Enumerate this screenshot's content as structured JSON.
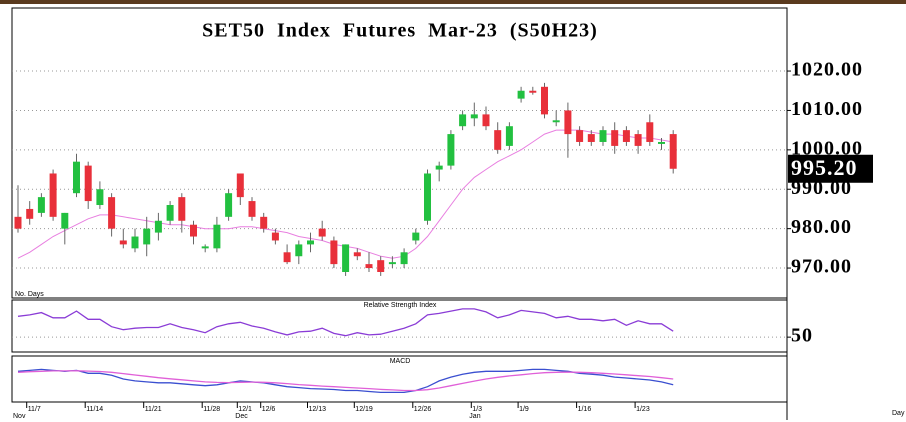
{
  "chart_data": [
    {
      "type": "candlestick",
      "title": "SET50 Index Futures Mar-23 (S50H23)",
      "categories": [
        null,
        "11/7",
        null,
        null,
        null,
        null,
        "11/14",
        null,
        null,
        null,
        null,
        "11/21",
        null,
        null,
        null,
        null,
        "11/28",
        null,
        null,
        "12/1",
        null,
        "12/6",
        null,
        null,
        null,
        "12/13",
        null,
        null,
        null,
        "12/19",
        null,
        null,
        null,
        null,
        "12/26",
        null,
        null,
        null,
        null,
        "1/3",
        null,
        null,
        null,
        "1/9",
        null,
        null,
        null,
        null,
        "1/16",
        null,
        null,
        null,
        null,
        "1/23",
        null,
        null,
        null
      ],
      "month_labels": [
        {
          "value": 0,
          "label": "Nov"
        },
        {
          "value": 19,
          "label": "Dec"
        },
        {
          "value": 39,
          "label": "Jan"
        }
      ],
      "x_unit_label": "Day",
      "corner_label": "No. Days",
      "open": [
        983,
        985,
        984,
        994,
        980,
        989,
        996,
        986,
        988,
        977,
        975,
        976,
        979,
        982,
        988,
        981,
        975,
        975,
        983,
        994,
        987,
        983,
        979,
        974,
        973,
        976,
        980,
        977,
        969,
        974,
        971,
        972,
        971,
        971,
        977,
        982,
        995,
        996,
        1006,
        1008,
        1009,
        1005,
        1001,
        1013,
        1015,
        1016,
        1007,
        1010,
        1005,
        1004,
        1002,
        1005,
        1005,
        1004,
        1007,
        1001.5,
        1004
      ],
      "high": [
        991,
        987,
        989,
        995,
        984,
        999,
        997,
        992,
        989,
        980,
        980,
        983,
        984,
        987,
        989,
        982,
        976,
        983,
        990,
        994,
        988,
        984,
        980,
        976,
        977,
        979,
        982,
        978,
        976,
        975,
        974,
        973,
        973,
        975,
        980,
        995,
        997,
        1005,
        1010,
        1012,
        1011,
        1007,
        1007,
        1016,
        1016,
        1017,
        1010,
        1012,
        1006,
        1005,
        1006,
        1007,
        1006,
        1005,
        1009,
        1003,
        1005
      ],
      "low": [
        979,
        981,
        983,
        982,
        976,
        988,
        985,
        985,
        978,
        975,
        974,
        973,
        977,
        981,
        979,
        976,
        974,
        974,
        982,
        986,
        982,
        979,
        976,
        971,
        971,
        974,
        977,
        970,
        968,
        972,
        969,
        968,
        970,
        970,
        976,
        981,
        992,
        995,
        1005,
        1006,
        1005,
        999,
        1000,
        1012,
        1014,
        1008,
        1006,
        998,
        1001,
        1001,
        1001,
        999,
        1001,
        999,
        1001,
        1000,
        994
      ],
      "close": [
        980,
        982.5,
        988,
        983,
        984,
        997,
        987,
        990,
        980,
        976,
        978,
        980,
        982,
        986,
        982,
        978,
        975.5,
        981,
        989,
        988,
        983,
        980,
        977,
        971.5,
        976,
        977,
        978,
        971,
        976,
        973,
        970,
        969,
        971.5,
        974,
        979,
        994,
        996,
        1004,
        1009,
        1009,
        1006,
        1000,
        1006,
        1015,
        1014.5,
        1009,
        1007.5,
        1004,
        1002,
        1002,
        1005,
        1001,
        1002,
        1001,
        1002,
        1002,
        995.2
      ],
      "up_color": "#22c040",
      "down_color": "#e8303a",
      "moving_average": {
        "color": "#e87fe0",
        "values": [
          972.5,
          974,
          976,
          978,
          979.5,
          981,
          982.5,
          983.5,
          983.5,
          983,
          982.5,
          982,
          981.5,
          981,
          981,
          980.5,
          980,
          980,
          980,
          980.5,
          980.5,
          980,
          979.5,
          979,
          978,
          977.5,
          977,
          976,
          975.5,
          975,
          974,
          973,
          972.5,
          973,
          975,
          978,
          982,
          986,
          990,
          993,
          995,
          997,
          998.5,
          1000,
          1002,
          1004,
          1005,
          1005,
          1005,
          1004.5,
          1004,
          1004,
          1003.5,
          1003,
          1003,
          1002.5,
          1002
        ]
      },
      "ylim": [
        962.4,
        1036
      ],
      "yticks": [
        {
          "value": 970,
          "label": "970.00"
        },
        {
          "value": 980,
          "label": "980.00"
        },
        {
          "value": 990,
          "label": "990.00"
        },
        {
          "value": 1000,
          "label": "1000.00"
        },
        {
          "value": 1010,
          "label": "1010.00"
        },
        {
          "value": 1020,
          "label": "1020.00"
        }
      ],
      "grid": true,
      "last_price": 995.2,
      "last_price_label": "995.20"
    },
    {
      "type": "line",
      "title": "Relative Strength Index",
      "series": [
        {
          "color": "#8a3cd6",
          "values": [
            78,
            80,
            83,
            76,
            76,
            85,
            74,
            74,
            64,
            60,
            62,
            63,
            63,
            68,
            63,
            60,
            56,
            64,
            68,
            70,
            65,
            62,
            57,
            53,
            57,
            58,
            62,
            55,
            52,
            56,
            53,
            54,
            58,
            62,
            68,
            80,
            82,
            85,
            88,
            88,
            84,
            76,
            80,
            86,
            84,
            82,
            76,
            78,
            74,
            74,
            72,
            74,
            66,
            72,
            68,
            68,
            58
          ]
        }
      ],
      "ylim": [
        30,
        100
      ],
      "yticks": [
        50
      ],
      "grid": true
    },
    {
      "type": "line",
      "title": "MACD",
      "series": [
        {
          "color": "#3a4fd0",
          "values": [
            4,
            4.5,
            5,
            4.5,
            4,
            4.5,
            3,
            3,
            2,
            0,
            -1,
            -1.5,
            -2,
            -2,
            -2.5,
            -3,
            -3.5,
            -3,
            -2,
            -1,
            -1.5,
            -2,
            -3,
            -4,
            -4.5,
            -5,
            -5.2,
            -5.5,
            -6,
            -6,
            -6.5,
            -7,
            -7,
            -7,
            -6,
            -4,
            -1,
            1,
            2.5,
            3.5,
            4,
            4,
            4,
            4.5,
            5,
            5,
            4.5,
            4,
            3,
            2.5,
            2,
            1,
            0.5,
            0,
            -0.5,
            -1.5,
            -3
          ]
        },
        {
          "color": "#e060d8",
          "values": [
            3.5,
            3.8,
            4,
            4.2,
            4.2,
            4.3,
            4.1,
            3.9,
            3.5,
            2.8,
            2.1,
            1.4,
            0.7,
            0.1,
            -0.4,
            -1,
            -1.5,
            -1.8,
            -1.9,
            -1.7,
            -1.6,
            -1.7,
            -2,
            -2.4,
            -2.9,
            -3.3,
            -3.7,
            -4,
            -4.4,
            -4.7,
            -5,
            -5.4,
            -5.7,
            -6,
            -6,
            -5.6,
            -4.7,
            -3.5,
            -2.3,
            -1.1,
            0,
            0.9,
            1.6,
            2.2,
            2.8,
            3.3,
            3.5,
            3.6,
            3.5,
            3.3,
            3,
            2.6,
            2.2,
            1.7,
            1.3,
            0.7,
            0
          ]
        }
      ],
      "ylim": [
        -12,
        12
      ]
    }
  ]
}
